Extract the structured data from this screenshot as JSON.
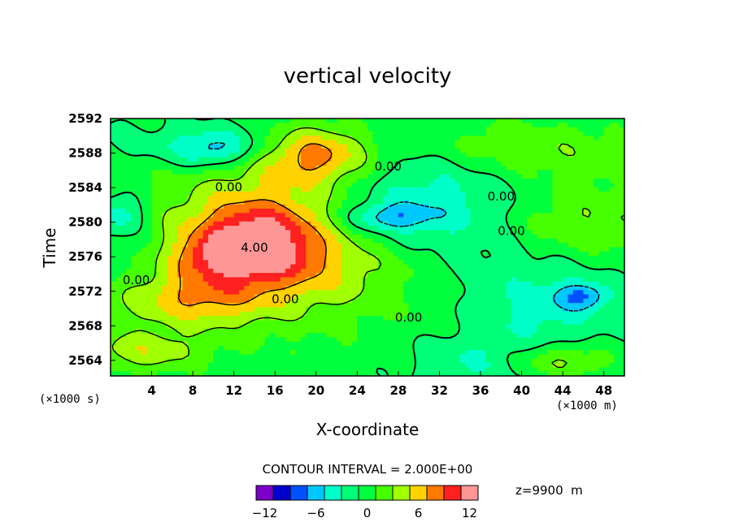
{
  "chart_data": {
    "type": "heatmap",
    "title": "vertical velocity",
    "xlabel": "X-coordinate",
    "ylabel": "Time",
    "x_unit_label": "(×1000 m)",
    "y_unit_label": "(×1000 s)",
    "xlim": [
      0,
      50
    ],
    "ylim": [
      2562.2,
      2592
    ],
    "x_ticks": [
      4,
      8,
      12,
      16,
      20,
      24,
      28,
      32,
      36,
      40,
      44,
      48
    ],
    "y_ticks": [
      2564,
      2568,
      2572,
      2576,
      2580,
      2584,
      2588,
      2592
    ],
    "contour_interval_text": "CONTOUR INTERVAL = 2.000E+00",
    "level_label_text": "z=9900  m",
    "contour_labels": [
      {
        "text": "0.00",
        "x": 11.5,
        "y": 2583.6
      },
      {
        "text": "0.00",
        "x": 27,
        "y": 2586
      },
      {
        "text": "0.00",
        "x": 38,
        "y": 2582.5
      },
      {
        "text": "0.00",
        "x": 39,
        "y": 2578.5
      },
      {
        "text": "4.00",
        "x": 14,
        "y": 2576.6
      },
      {
        "text": "0.00",
        "x": 2.5,
        "y": 2572.8
      },
      {
        "text": "0.00",
        "x": 17,
        "y": 2570.6
      },
      {
        "text": "0.00",
        "x": 29,
        "y": 2568.5
      }
    ],
    "colorbar": {
      "min": -12,
      "max": 12,
      "ticks": [
        "−12",
        "−6",
        "0",
        "6",
        "12"
      ],
      "colors": [
        "#7a00c8",
        "#0000cc",
        "#0050ff",
        "#00c8ff",
        "#00ffc8",
        "#00ff78",
        "#00ff3c",
        "#46ff00",
        "#a0ff00",
        "#ffd200",
        "#ff7800",
        "#ff2020",
        "#ff9696"
      ]
    },
    "field_blobs": [
      {
        "x": 26,
        "y": 2575,
        "rx": 40,
        "ry": 30,
        "v": 0.3
      },
      {
        "x": 15,
        "y": 2577,
        "rx": 17,
        "ry": 10,
        "v": 2.2
      },
      {
        "x": 14,
        "y": 2579,
        "rx": 6,
        "ry": 3.5,
        "v": 3.6
      },
      {
        "x": 16,
        "y": 2574.5,
        "rx": 10,
        "ry": 4,
        "v": 1.8
      },
      {
        "x": 12,
        "y": 2576,
        "rx": 6,
        "ry": 2.5,
        "v": 3.2
      },
      {
        "x": 8,
        "y": 2571,
        "rx": 7,
        "ry": 3,
        "v": 2.4
      },
      {
        "x": 3,
        "y": 2565,
        "rx": 6,
        "ry": 2.5,
        "v": 2.2
      },
      {
        "x": 20,
        "y": 2588,
        "rx": 5,
        "ry": 3,
        "v": 3.4
      },
      {
        "x": 18,
        "y": 2586,
        "rx": 10,
        "ry": 6,
        "v": 1.4
      },
      {
        "x": 28,
        "y": 2583,
        "rx": 8,
        "ry": 5,
        "v": -1.4
      },
      {
        "x": 32,
        "y": 2581,
        "rx": 10,
        "ry": 6,
        "v": -1.6
      },
      {
        "x": 27,
        "y": 2580.5,
        "rx": 4,
        "ry": 1.5,
        "v": -2.4
      },
      {
        "x": 10,
        "y": 2588.5,
        "rx": 4,
        "ry": 2,
        "v": -2.5
      },
      {
        "x": 12,
        "y": 2589,
        "rx": 12,
        "ry": 3,
        "v": -1.3
      },
      {
        "x": 1,
        "y": 2581,
        "rx": 2.5,
        "ry": 2.5,
        "v": -2.5
      },
      {
        "x": 3,
        "y": 2576,
        "rx": 6,
        "ry": 4,
        "v": -1.2
      },
      {
        "x": 38,
        "y": 2577,
        "rx": 8,
        "ry": 7,
        "v": -0.4
      },
      {
        "x": 42,
        "y": 2570,
        "rx": 7,
        "ry": 5,
        "v": -1.6
      },
      {
        "x": 46,
        "y": 2571.5,
        "rx": 2.5,
        "ry": 1.5,
        "v": -2.6
      },
      {
        "x": 35,
        "y": 2564,
        "rx": 6,
        "ry": 3,
        "v": -1.3
      },
      {
        "x": 46,
        "y": 2580,
        "rx": 9,
        "ry": 4,
        "v": 2.0
      },
      {
        "x": 45,
        "y": 2588,
        "rx": 8,
        "ry": 4,
        "v": 1.4
      },
      {
        "x": 44,
        "y": 2564,
        "rx": 5,
        "ry": 2,
        "v": 2.2
      },
      {
        "x": 37,
        "y": 2589,
        "rx": 6,
        "ry": 3,
        "v": 1.0
      }
    ]
  }
}
